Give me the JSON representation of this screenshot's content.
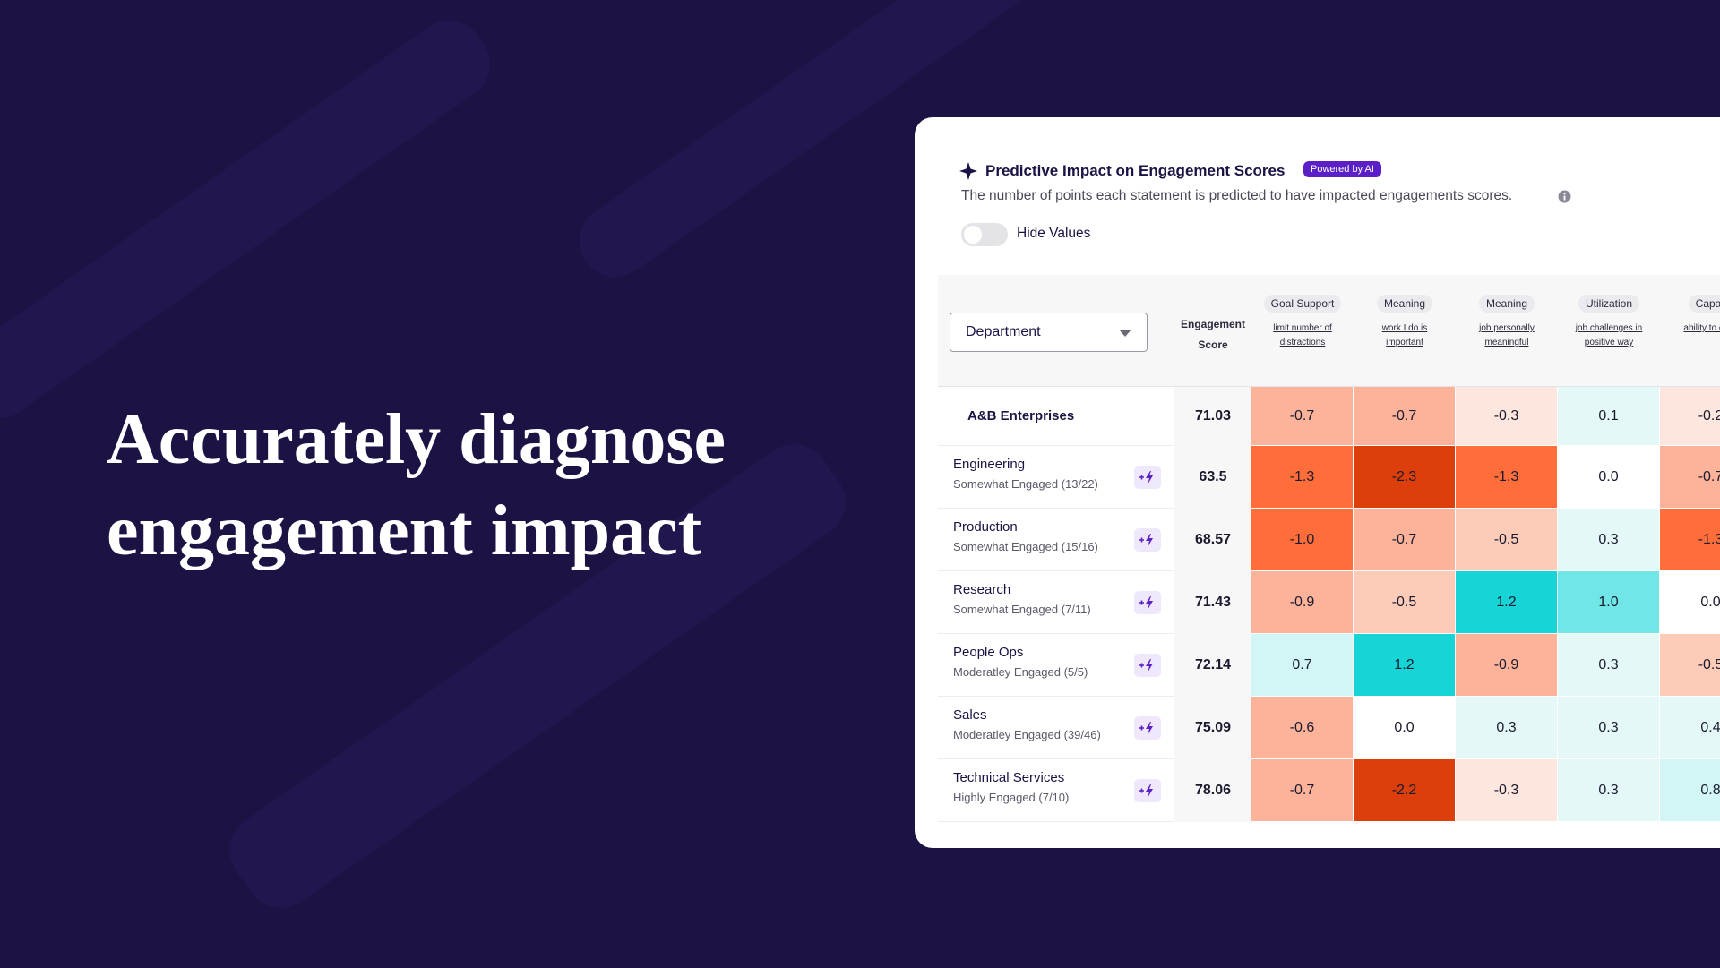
{
  "headline": "Accurately diagnose engagement impact",
  "card": {
    "title": "Predictive Impact on Engagement Scores",
    "badge": "Powered by AI",
    "subtitle": "The number of points each statement is predicted to have impacted engagements scores.",
    "toggle_label": "Hide Values",
    "dropdown": "Department"
  },
  "table": {
    "score_header": "Engagement Score",
    "columns": [
      {
        "category": "Goal Support",
        "statement": "limit number of distractions"
      },
      {
        "category": "Meaning",
        "statement": "work I do is important"
      },
      {
        "category": "Meaning",
        "statement": "job personally meaningful"
      },
      {
        "category": "Utilization",
        "statement": "job challenges in positive way"
      },
      {
        "category": "Capac",
        "statement": "ability to clear"
      }
    ],
    "rows": [
      {
        "name": "A&B Enterprises",
        "score": "71.03",
        "values": [
          "-0.7",
          "-0.7",
          "-0.3",
          "0.1",
          "-0.2"
        ]
      },
      {
        "name": "Engineering",
        "status": "Somewhat Engaged (13/22)",
        "score": "63.5",
        "values": [
          "-1.3",
          "-2.3",
          "-1.3",
          "0.0",
          "-0.7"
        ]
      },
      {
        "name": "Production",
        "status": "Somewhat Engaged (15/16)",
        "score": "68.57",
        "values": [
          "-1.0",
          "-0.7",
          "-0.5",
          "0.3",
          "-1.3"
        ]
      },
      {
        "name": "Research",
        "status": "Somewhat Engaged (7/11)",
        "score": "71.43",
        "values": [
          "-0.9",
          "-0.5",
          "1.2",
          "1.0",
          "0.0"
        ]
      },
      {
        "name": "People Ops",
        "status": "Moderatley Engaged (5/5)",
        "score": "72.14",
        "values": [
          "0.7",
          "1.2",
          "-0.9",
          "0.3",
          "-0.5"
        ]
      },
      {
        "name": "Sales",
        "status": "Moderatley Engaged (39/46)",
        "score": "75.09",
        "values": [
          "-0.6",
          "0.0",
          "0.3",
          "0.3",
          "0.4"
        ]
      },
      {
        "name": "Technical Services",
        "status": "Highly Engaged (7/10)",
        "score": "78.06",
        "values": [
          "-0.7",
          "-2.2",
          "-0.3",
          "0.3",
          "0.8"
        ]
      }
    ]
  }
}
